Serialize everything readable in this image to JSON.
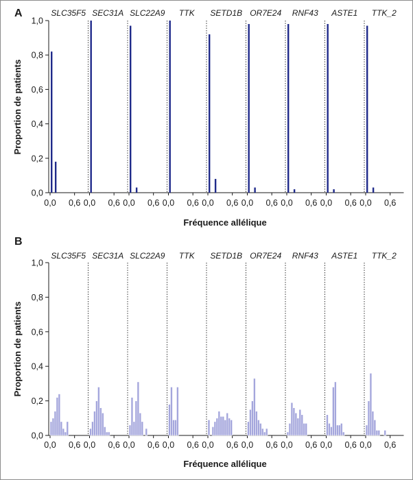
{
  "chart_data": [
    {
      "panel": "A",
      "type": "bar",
      "ylabel": "Proportion de patients",
      "xlabel": "Fréquence allélique",
      "ylim": [
        0,
        1.0
      ],
      "yticks": [
        "0,0",
        "0,2",
        "0,4",
        "0,6",
        "0,8",
        "1,0"
      ],
      "xticks": [
        "0,0",
        "0,6"
      ],
      "x_bins": [
        0.0,
        0.05,
        0.1,
        0.15,
        0.2,
        0.25,
        0.3,
        0.35,
        0.4,
        0.45,
        0.5,
        0.55,
        0.6,
        0.65,
        0.7,
        0.75,
        0.8,
        0.85,
        0.9
      ],
      "bar_color": "#1f2a8a",
      "grid": false,
      "subpanels": [
        {
          "gene": "SLC35F5",
          "values": [
            0.82,
            0,
            0.18,
            0,
            0,
            0,
            0,
            0,
            0,
            0,
            0,
            0,
            0,
            0,
            0,
            0,
            0,
            0,
            0
          ]
        },
        {
          "gene": "SEC31A",
          "values": [
            1.0,
            0,
            0,
            0,
            0,
            0,
            0,
            0,
            0,
            0,
            0,
            0,
            0,
            0,
            0,
            0,
            0,
            0,
            0
          ]
        },
        {
          "gene": "SLC22A9",
          "values": [
            0.97,
            0,
            0,
            0.03,
            0,
            0,
            0,
            0,
            0,
            0,
            0,
            0,
            0,
            0,
            0,
            0,
            0,
            0,
            0
          ]
        },
        {
          "gene": "TTK",
          "values": [
            1.0,
            0,
            0,
            0,
            0,
            0,
            0,
            0,
            0,
            0,
            0,
            0,
            0,
            0,
            0,
            0,
            0,
            0,
            0
          ]
        },
        {
          "gene": "SETD1B",
          "values": [
            0.92,
            0,
            0,
            0.08,
            0,
            0,
            0,
            0,
            0,
            0,
            0,
            0,
            0,
            0,
            0,
            0,
            0,
            0,
            0
          ]
        },
        {
          "gene": "OR7E24",
          "values": [
            0.98,
            0,
            0,
            0.03,
            0,
            0,
            0,
            0,
            0,
            0,
            0,
            0,
            0,
            0,
            0,
            0,
            0,
            0,
            0
          ]
        },
        {
          "gene": "RNF43",
          "values": [
            0.98,
            0,
            0,
            0.02,
            0,
            0,
            0,
            0,
            0,
            0,
            0,
            0,
            0,
            0,
            0,
            0,
            0,
            0,
            0
          ]
        },
        {
          "gene": "ASTE1",
          "values": [
            0.98,
            0,
            0,
            0.02,
            0,
            0,
            0,
            0,
            0,
            0,
            0,
            0,
            0,
            0,
            0,
            0,
            0,
            0,
            0
          ]
        },
        {
          "gene": "TTK_2",
          "values": [
            0.97,
            0,
            0,
            0.03,
            0,
            0,
            0,
            0,
            0,
            0,
            0,
            0,
            0,
            0,
            0,
            0,
            0,
            0,
            0
          ]
        }
      ]
    },
    {
      "panel": "B",
      "type": "bar",
      "ylabel": "Proportion de patients",
      "xlabel": "Fréquence allélique",
      "ylim": [
        0,
        1.0
      ],
      "yticks": [
        "0,0",
        "0,2",
        "0,4",
        "0,6",
        "0,8",
        "1,0"
      ],
      "xticks": [
        "0,0",
        "0,6"
      ],
      "x_bins": [
        0.0,
        0.05,
        0.1,
        0.15,
        0.2,
        0.25,
        0.3,
        0.35,
        0.4,
        0.45,
        0.5,
        0.55,
        0.6,
        0.65,
        0.7,
        0.75,
        0.8,
        0.85,
        0.9
      ],
      "bar_color": "#a4a6dc",
      "bar_edge_color": "#ffffff",
      "grid": false,
      "subpanels": [
        {
          "gene": "SLC35F5",
          "values": [
            0.08,
            0.1,
            0.14,
            0.22,
            0.24,
            0.08,
            0.04,
            0.02,
            0.08,
            0,
            0,
            0,
            0,
            0,
            0,
            0,
            0,
            0,
            0
          ]
        },
        {
          "gene": "SEC31A",
          "values": [
            0.04,
            0.08,
            0.14,
            0.2,
            0.28,
            0.16,
            0.13,
            0.05,
            0.02,
            0.02,
            0,
            0,
            0,
            0,
            0,
            0,
            0,
            0,
            0
          ]
        },
        {
          "gene": "SLC22A9",
          "values": [
            0.06,
            0.22,
            0.08,
            0.2,
            0.31,
            0.13,
            0.08,
            0,
            0.04,
            0,
            0,
            0,
            0,
            0,
            0,
            0,
            0,
            0,
            0
          ]
        },
        {
          "gene": "TTK",
          "values": [
            0.18,
            0.28,
            0.09,
            0.09,
            0.28,
            0,
            0,
            0,
            0,
            0,
            0,
            0,
            0,
            0,
            0,
            0,
            0,
            0,
            0
          ]
        },
        {
          "gene": "SETD1B",
          "values": [
            0.09,
            0,
            0.05,
            0.08,
            0.1,
            0.14,
            0.11,
            0.11,
            0.09,
            0.13,
            0.1,
            0.09,
            0,
            0,
            0,
            0,
            0,
            0,
            0
          ]
        },
        {
          "gene": "OR7E24",
          "values": [
            0.08,
            0.15,
            0.2,
            0.33,
            0.14,
            0.09,
            0.07,
            0.04,
            0.02,
            0.04,
            0,
            0,
            0,
            0,
            0,
            0,
            0,
            0,
            0
          ]
        },
        {
          "gene": "RNF43",
          "values": [
            0.02,
            0.07,
            0.19,
            0.16,
            0.13,
            0.1,
            0.15,
            0.12,
            0.07,
            0.07,
            0,
            0,
            0,
            0,
            0,
            0,
            0,
            0,
            0
          ]
        },
        {
          "gene": "ASTE1",
          "values": [
            0.12,
            0.07,
            0.05,
            0.28,
            0.31,
            0.06,
            0.06,
            0.07,
            0.02,
            0,
            0,
            0,
            0,
            0,
            0,
            0,
            0,
            0,
            0
          ]
        },
        {
          "gene": "TTK_2",
          "values": [
            0.06,
            0.2,
            0.36,
            0.14,
            0.09,
            0.03,
            0.03,
            0,
            0,
            0.03,
            0,
            0,
            0,
            0,
            0,
            0,
            0,
            0,
            0
          ]
        }
      ]
    }
  ]
}
